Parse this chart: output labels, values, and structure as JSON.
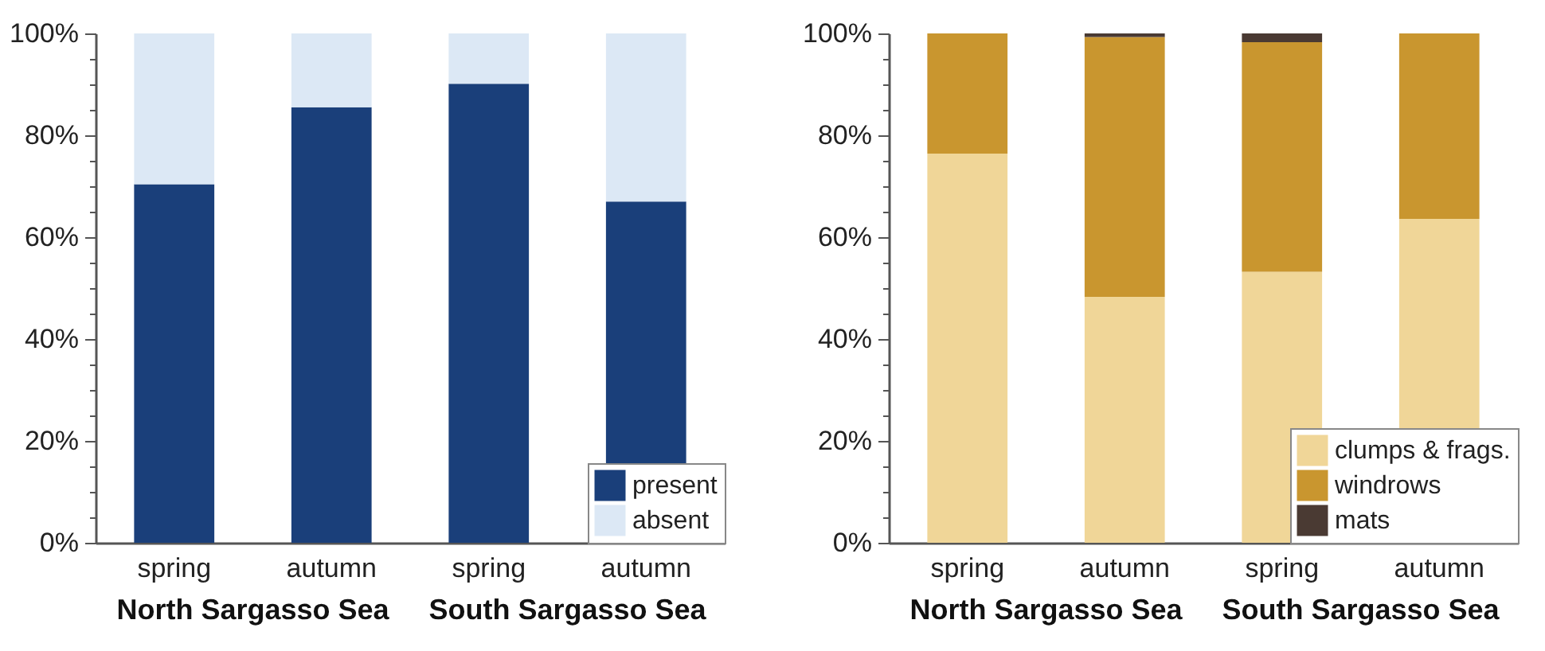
{
  "chart_data": [
    {
      "type": "bar",
      "stacked": true,
      "categories": [
        "spring",
        "autumn",
        "spring",
        "autumn"
      ],
      "series": [
        {
          "name": "present",
          "color": "#1a3f7a",
          "values": [
            70.4,
            85.5,
            90.1,
            67.0
          ]
        },
        {
          "name": "absent",
          "color": "#dce8f5",
          "values": [
            29.6,
            14.5,
            9.9,
            33.0
          ]
        }
      ],
      "ylim": [
        0,
        100
      ],
      "yticks": [
        {
          "value": 0,
          "label": "0%"
        },
        {
          "value": 5,
          "label": null
        },
        {
          "value": 10,
          "label": null
        },
        {
          "value": 15,
          "label": null
        },
        {
          "value": 20,
          "label": "20%"
        },
        {
          "value": 25,
          "label": null
        },
        {
          "value": 30,
          "label": null
        },
        {
          "value": 35,
          "label": null
        },
        {
          "value": 40,
          "label": "40%"
        },
        {
          "value": 45,
          "label": null
        },
        {
          "value": 50,
          "label": null
        },
        {
          "value": 55,
          "label": null
        },
        {
          "value": 60,
          "label": "60%"
        },
        {
          "value": 65,
          "label": null
        },
        {
          "value": 70,
          "label": null
        },
        {
          "value": 75,
          "label": null
        },
        {
          "value": 80,
          "label": "80%"
        },
        {
          "value": 85,
          "label": null
        },
        {
          "value": 90,
          "label": null
        },
        {
          "value": 95,
          "label": null
        },
        {
          "value": 100,
          "label": "100%"
        }
      ],
      "legend": "bottom right",
      "annotations": [
        "North Sargasso Sea",
        "South Sargasso Sea"
      ]
    },
    {
      "type": "bar",
      "stacked": true,
      "categories": [
        "spring",
        "autumn",
        "spring",
        "autumn"
      ],
      "series": [
        {
          "name": "clumps & frags.",
          "color": "#f0d698",
          "values": [
            76.4,
            48.3,
            53.2,
            63.6
          ]
        },
        {
          "name": "windrows",
          "color": "#c9962f",
          "values": [
            23.6,
            51.0,
            45.1,
            36.4
          ]
        },
        {
          "name": "mats",
          "color": "#4a3a33",
          "values": [
            0,
            0.7,
            1.7,
            0
          ]
        }
      ],
      "ylim": [
        0,
        100
      ],
      "yticks": [
        {
          "value": 0,
          "label": "0%"
        },
        {
          "value": 5,
          "label": null
        },
        {
          "value": 10,
          "label": null
        },
        {
          "value": 15,
          "label": null
        },
        {
          "value": 20,
          "label": "20%"
        },
        {
          "value": 25,
          "label": null
        },
        {
          "value": 30,
          "label": null
        },
        {
          "value": 35,
          "label": null
        },
        {
          "value": 40,
          "label": "40%"
        },
        {
          "value": 45,
          "label": null
        },
        {
          "value": 50,
          "label": null
        },
        {
          "value": 55,
          "label": null
        },
        {
          "value": 60,
          "label": "60%"
        },
        {
          "value": 65,
          "label": null
        },
        {
          "value": 70,
          "label": null
        },
        {
          "value": 75,
          "label": null
        },
        {
          "value": 80,
          "label": "80%"
        },
        {
          "value": 85,
          "label": null
        },
        {
          "value": 90,
          "label": null
        },
        {
          "value": 95,
          "label": null
        },
        {
          "value": 100,
          "label": "100%"
        }
      ],
      "legend": "bottom right",
      "annotations": [
        "North Sargasso Sea",
        "South Sargasso Sea"
      ]
    }
  ]
}
